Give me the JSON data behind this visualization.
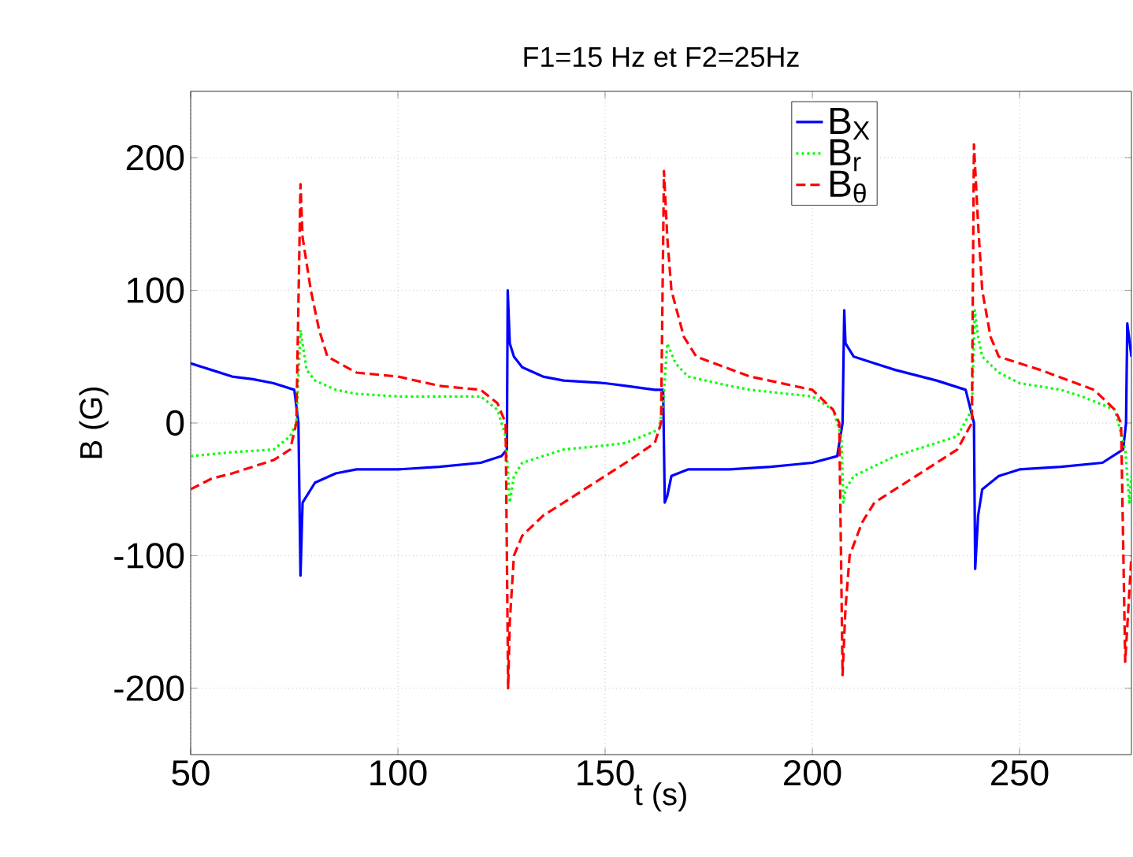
{
  "chart_data": {
    "type": "line",
    "title": "F1=15 Hz et F2=25Hz",
    "xlabel": "t (s)",
    "ylabel": "B (G)",
    "xlim": [
      50,
      277
    ],
    "ylim": [
      -250,
      250
    ],
    "xticks": [
      50,
      100,
      150,
      200,
      250
    ],
    "yticks": [
      -200,
      -100,
      0,
      100,
      200
    ],
    "grid": true,
    "legend": "top right",
    "marker": "none",
    "series": [
      {
        "name": "B$_{X}$",
        "color": "#0000ff",
        "line_style": "solid",
        "x": [
          50,
          55,
          60,
          65,
          70,
          75,
          76,
          76.5,
          77,
          80,
          85,
          90,
          100,
          110,
          120,
          125,
          126.3,
          126.5,
          127,
          128,
          130,
          135,
          140,
          150,
          155,
          162,
          164,
          164.4,
          165,
          166,
          170,
          180,
          190,
          200,
          206,
          207.3,
          207.7,
          208,
          210,
          215,
          220,
          230,
          237,
          239,
          239.3,
          240,
          241,
          245,
          250,
          260,
          270,
          275,
          275.7,
          276,
          277
        ],
        "values": [
          45,
          40,
          35,
          33,
          30,
          25,
          0,
          -115,
          -60,
          -45,
          -38,
          -35,
          -35,
          -33,
          -30,
          -25,
          -20,
          100,
          60,
          50,
          42,
          35,
          32,
          30,
          28,
          25,
          25,
          -60,
          -55,
          -40,
          -35,
          -35,
          -33,
          -30,
          -25,
          0,
          85,
          60,
          50,
          45,
          40,
          32,
          25,
          0,
          -110,
          -70,
          -50,
          -40,
          -35,
          -33,
          -30,
          -20,
          0,
          75,
          50
        ]
      },
      {
        "name": "B$_{r}$",
        "color": "#00ff00",
        "line_style": "dotted",
        "x": [
          50,
          60,
          70,
          74,
          75.5,
          76.5,
          78,
          80,
          85,
          90,
          100,
          110,
          120,
          124,
          126,
          127,
          128,
          130,
          140,
          150,
          155,
          163,
          164,
          165,
          167,
          170,
          180,
          185,
          200,
          205,
          207,
          207.5,
          208,
          210,
          220,
          230,
          235,
          238.5,
          239.2,
          240,
          241,
          245,
          250,
          260,
          265,
          273,
          275.5,
          276.5,
          277
        ],
        "values": [
          -25,
          -22,
          -20,
          -10,
          0,
          70,
          40,
          32,
          25,
          22,
          20,
          20,
          20,
          10,
          -10,
          -60,
          -40,
          -30,
          -20,
          -17,
          -15,
          -5,
          15,
          60,
          45,
          35,
          28,
          25,
          20,
          10,
          -10,
          -60,
          -50,
          -40,
          -25,
          -15,
          -10,
          10,
          85,
          65,
          50,
          38,
          30,
          25,
          20,
          10,
          -20,
          -60,
          -40
        ]
      },
      {
        "name": "B$_{θ}$",
        "color": "#ff0000",
        "line_style": "dashed",
        "x": [
          50,
          55,
          60,
          65,
          70,
          74,
          75.5,
          76.5,
          77,
          79,
          81,
          83,
          90,
          100,
          110,
          120,
          124,
          126,
          126.6,
          127,
          128,
          130,
          135,
          145,
          155,
          162,
          163.5,
          164.2,
          165,
          166,
          169,
          172,
          185,
          200,
          205,
          206.5,
          207.3,
          208,
          209,
          212,
          215,
          225,
          235,
          238.5,
          239,
          240,
          241,
          243,
          245,
          255,
          268,
          273,
          274.5,
          275.5,
          277
        ],
        "values": [
          -50,
          -42,
          -38,
          -33,
          -28,
          -20,
          0,
          180,
          140,
          100,
          70,
          50,
          38,
          35,
          28,
          25,
          15,
          0,
          -200,
          -150,
          -100,
          -85,
          -70,
          -50,
          -30,
          -15,
          0,
          190,
          140,
          100,
          65,
          50,
          35,
          25,
          10,
          0,
          -190,
          -140,
          -100,
          -75,
          -60,
          -40,
          -20,
          0,
          210,
          150,
          100,
          65,
          50,
          40,
          25,
          10,
          0,
          -180,
          -100
        ]
      }
    ]
  }
}
